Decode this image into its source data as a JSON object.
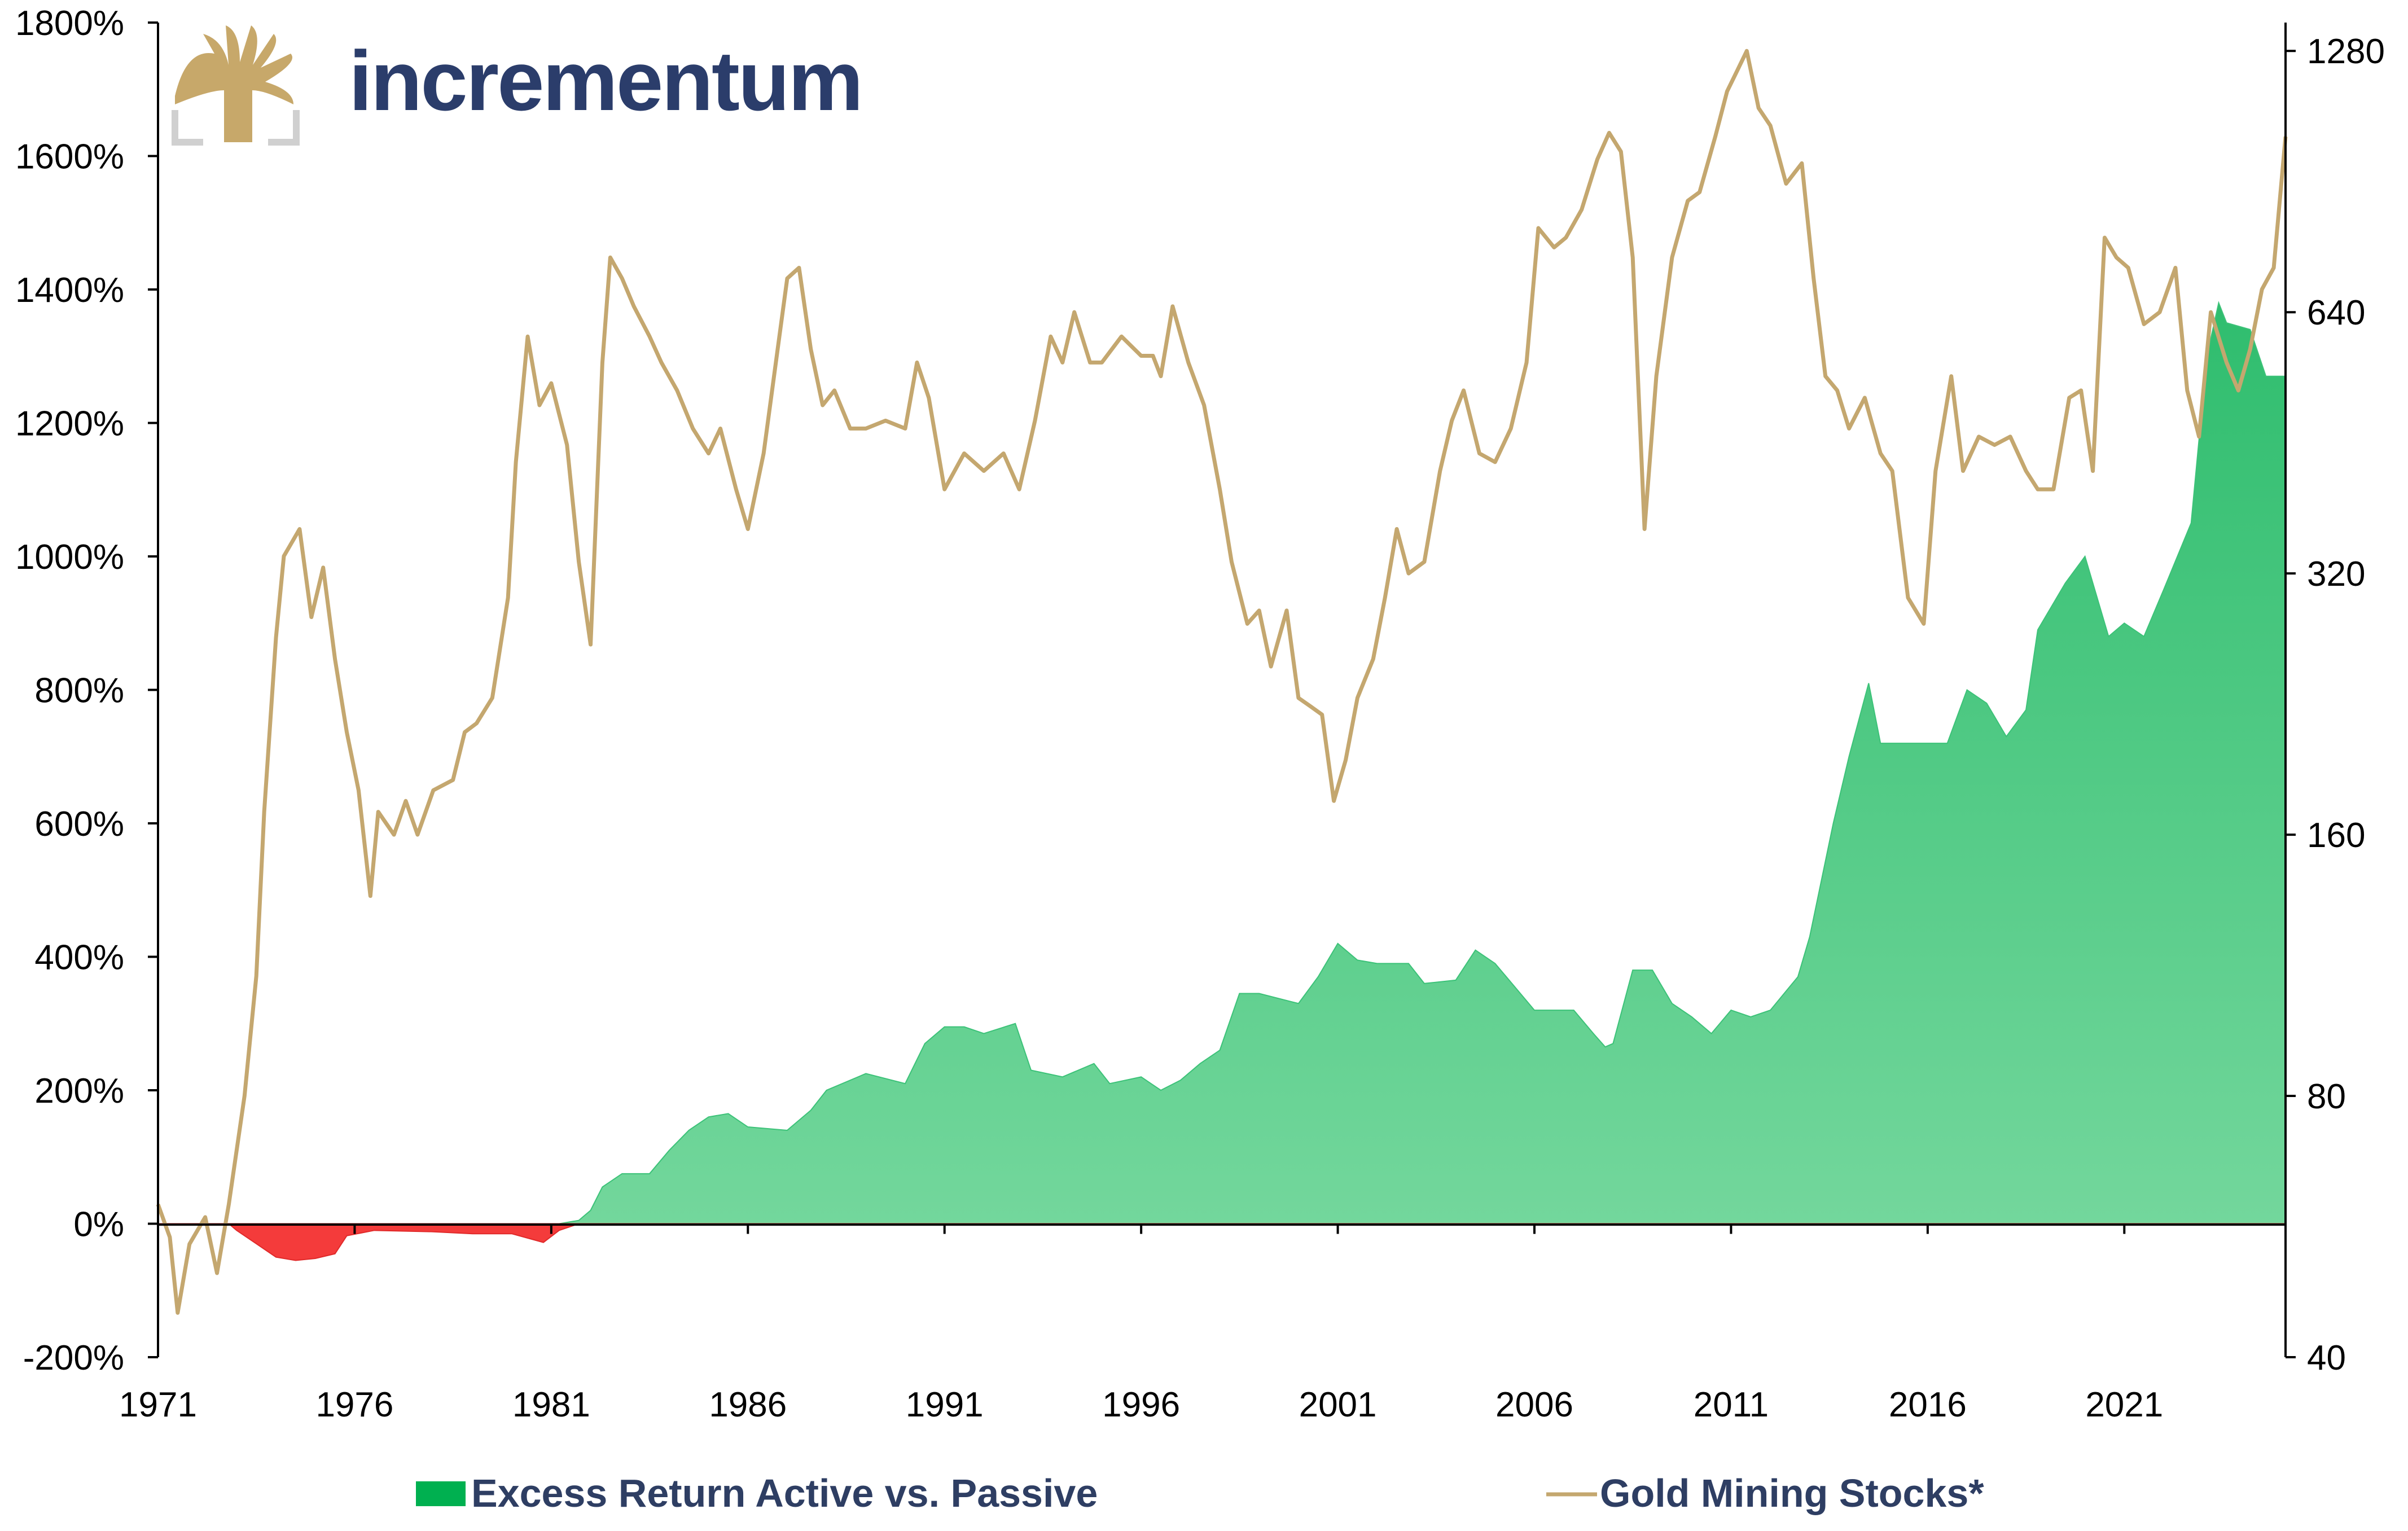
{
  "brand": {
    "name": "incrementum",
    "text_color": "#2b3d6b",
    "logo_color": "#c7a86a"
  },
  "chart_data": {
    "type": "bar",
    "title": "",
    "xlabel": "",
    "ylabel": "",
    "x_range": [
      1971,
      2025.1
    ],
    "x_ticks": [
      "1971",
      "1976",
      "1981",
      "1986",
      "1991",
      "1996",
      "2001",
      "2006",
      "2011",
      "2016",
      "2021"
    ],
    "y_left": {
      "range": [
        -200,
        1800
      ],
      "unit": "%",
      "ticks": [
        "-200%",
        "0%",
        "200%",
        "400%",
        "600%",
        "800%",
        "1000%",
        "1200%",
        "1400%",
        "1600%",
        "1800%"
      ]
    },
    "y_right": {
      "scale": "log2",
      "range": [
        40,
        1380
      ],
      "ticks": [
        "40",
        "80",
        "160",
        "320",
        "640",
        "1280"
      ]
    },
    "legend": {
      "position": "bottom"
    },
    "grid": false,
    "series": [
      {
        "name": "Excess Return Active vs. Passive",
        "type": "area",
        "axis": "left",
        "color_positive": "#3cc278",
        "color_negative": "#f43b3b",
        "legend_color": "#00b050",
        "points": [
          [
            1971.0,
            0
          ],
          [
            1972.8,
            0
          ],
          [
            1973.0,
            -10
          ],
          [
            1973.5,
            -30
          ],
          [
            1974.0,
            -50
          ],
          [
            1974.5,
            -55
          ],
          [
            1975.0,
            -52
          ],
          [
            1975.5,
            -45
          ],
          [
            1975.8,
            -18
          ],
          [
            1976.5,
            -10
          ],
          [
            1978.0,
            -12
          ],
          [
            1979.0,
            -15
          ],
          [
            1980.0,
            -15
          ],
          [
            1980.8,
            -28
          ],
          [
            1981.2,
            -10
          ],
          [
            1981.7,
            5
          ],
          [
            1982.0,
            20
          ],
          [
            1982.3,
            55
          ],
          [
            1982.8,
            75
          ],
          [
            1983.5,
            75
          ],
          [
            1984.0,
            110
          ],
          [
            1984.5,
            140
          ],
          [
            1985.0,
            160
          ],
          [
            1985.5,
            165
          ],
          [
            1986.0,
            145
          ],
          [
            1987.0,
            140
          ],
          [
            1987.6,
            170
          ],
          [
            1988.0,
            200
          ],
          [
            1989.0,
            225
          ],
          [
            1990.0,
            210
          ],
          [
            1990.5,
            270
          ],
          [
            1991.0,
            295
          ],
          [
            1991.5,
            295
          ],
          [
            1992.0,
            285
          ],
          [
            1992.8,
            300
          ],
          [
            1993.2,
            230
          ],
          [
            1994.0,
            220
          ],
          [
            1994.8,
            240
          ],
          [
            1995.2,
            210
          ],
          [
            1996.0,
            220
          ],
          [
            1996.5,
            200
          ],
          [
            1997.0,
            215
          ],
          [
            1997.5,
            240
          ],
          [
            1998.0,
            260
          ],
          [
            1998.5,
            345
          ],
          [
            1999.0,
            345
          ],
          [
            2000.0,
            330
          ],
          [
            2000.5,
            370
          ],
          [
            2001.0,
            420
          ],
          [
            2001.5,
            395
          ],
          [
            2002.0,
            390
          ],
          [
            2002.8,
            390
          ],
          [
            2003.2,
            360
          ],
          [
            2004.0,
            365
          ],
          [
            2004.5,
            410
          ],
          [
            2005.0,
            390
          ],
          [
            2006.0,
            320
          ],
          [
            2007.0,
            320
          ],
          [
            2007.5,
            285
          ],
          [
            2007.8,
            265
          ],
          [
            2008.0,
            270
          ],
          [
            2008.5,
            380
          ],
          [
            2009.0,
            380
          ],
          [
            2009.5,
            330
          ],
          [
            2010.0,
            310
          ],
          [
            2010.5,
            285
          ],
          [
            2011.0,
            320
          ],
          [
            2011.5,
            310
          ],
          [
            2012.0,
            320
          ],
          [
            2012.7,
            370
          ],
          [
            2013.0,
            430
          ],
          [
            2013.6,
            600
          ],
          [
            2014.0,
            700
          ],
          [
            2014.5,
            810
          ],
          [
            2014.8,
            720
          ],
          [
            2016.0,
            720
          ],
          [
            2016.5,
            720
          ],
          [
            2017.0,
            800
          ],
          [
            2017.5,
            780
          ],
          [
            2018.0,
            730
          ],
          [
            2018.5,
            770
          ],
          [
            2018.8,
            890
          ],
          [
            2019.5,
            960
          ],
          [
            2020.0,
            1000
          ],
          [
            2020.6,
            880
          ],
          [
            2021.0,
            900
          ],
          [
            2021.5,
            880
          ],
          [
            2022.0,
            950
          ],
          [
            2022.7,
            1050
          ],
          [
            2023.1,
            1300
          ],
          [
            2023.4,
            1380
          ],
          [
            2023.6,
            1350
          ],
          [
            2024.2,
            1340
          ],
          [
            2024.6,
            1270
          ],
          [
            2025.1,
            1270
          ]
        ]
      },
      {
        "name": "Gold Mining Stocks*",
        "type": "line",
        "axis": "right",
        "color": "#c4a76f",
        "points": [
          [
            1971.0,
            60
          ],
          [
            1971.3,
            55
          ],
          [
            1971.5,
            45
          ],
          [
            1971.8,
            54
          ],
          [
            1972.2,
            58
          ],
          [
            1972.5,
            50
          ],
          [
            1972.8,
            60
          ],
          [
            1973.2,
            80
          ],
          [
            1973.5,
            110
          ],
          [
            1973.7,
            170
          ],
          [
            1974.0,
            270
          ],
          [
            1974.2,
            335
          ],
          [
            1974.6,
            360
          ],
          [
            1974.9,
            285
          ],
          [
            1975.2,
            325
          ],
          [
            1975.5,
            255
          ],
          [
            1975.8,
            210
          ],
          [
            1976.1,
            180
          ],
          [
            1976.4,
            136
          ],
          [
            1976.6,
            170
          ],
          [
            1977.0,
            160
          ],
          [
            1977.3,
            175
          ],
          [
            1977.6,
            160
          ],
          [
            1978.0,
            180
          ],
          [
            1978.5,
            185
          ],
          [
            1978.8,
            210
          ],
          [
            1979.1,
            215
          ],
          [
            1979.5,
            230
          ],
          [
            1979.9,
            300
          ],
          [
            1980.1,
            430
          ],
          [
            1980.4,
            600
          ],
          [
            1980.7,
            500
          ],
          [
            1981.0,
            530
          ],
          [
            1981.4,
            450
          ],
          [
            1981.7,
            330
          ],
          [
            1982.0,
            265
          ],
          [
            1982.3,
            560
          ],
          [
            1982.5,
            740
          ],
          [
            1982.8,
            700
          ],
          [
            1983.1,
            650
          ],
          [
            1983.5,
            600
          ],
          [
            1983.8,
            560
          ],
          [
            1984.2,
            520
          ],
          [
            1984.6,
            470
          ],
          [
            1985.0,
            440
          ],
          [
            1985.3,
            470
          ],
          [
            1985.7,
            400
          ],
          [
            1986.0,
            360
          ],
          [
            1986.4,
            440
          ],
          [
            1986.8,
            600
          ],
          [
            1987.0,
            700
          ],
          [
            1987.3,
            720
          ],
          [
            1987.6,
            580
          ],
          [
            1987.9,
            500
          ],
          [
            1988.2,
            520
          ],
          [
            1988.6,
            470
          ],
          [
            1989.0,
            470
          ],
          [
            1989.5,
            480
          ],
          [
            1990.0,
            470
          ],
          [
            1990.3,
            560
          ],
          [
            1990.6,
            510
          ],
          [
            1991.0,
            400
          ],
          [
            1991.5,
            440
          ],
          [
            1992.0,
            420
          ],
          [
            1992.5,
            440
          ],
          [
            1992.9,
            400
          ],
          [
            1993.3,
            480
          ],
          [
            1993.7,
            600
          ],
          [
            1994.0,
            560
          ],
          [
            1994.3,
            640
          ],
          [
            1994.7,
            560
          ],
          [
            1995.0,
            560
          ],
          [
            1995.5,
            600
          ],
          [
            1996.0,
            570
          ],
          [
            1996.3,
            570
          ],
          [
            1996.5,
            540
          ],
          [
            1996.8,
            650
          ],
          [
            1997.2,
            560
          ],
          [
            1997.6,
            500
          ],
          [
            1998.0,
            400
          ],
          [
            1998.3,
            330
          ],
          [
            1998.7,
            280
          ],
          [
            1999.0,
            290
          ],
          [
            1999.3,
            250
          ],
          [
            1999.7,
            290
          ],
          [
            2000.0,
            230
          ],
          [
            2000.3,
            225
          ],
          [
            2000.6,
            220
          ],
          [
            2000.9,
            175
          ],
          [
            2001.2,
            195
          ],
          [
            2001.5,
            230
          ],
          [
            2001.9,
            255
          ],
          [
            2002.2,
            300
          ],
          [
            2002.5,
            360
          ],
          [
            2002.8,
            320
          ],
          [
            2003.2,
            330
          ],
          [
            2003.6,
            420
          ],
          [
            2003.9,
            480
          ],
          [
            2004.2,
            520
          ],
          [
            2004.6,
            440
          ],
          [
            2005.0,
            430
          ],
          [
            2005.4,
            470
          ],
          [
            2005.8,
            560
          ],
          [
            2006.1,
            800
          ],
          [
            2006.5,
            760
          ],
          [
            2006.8,
            780
          ],
          [
            2007.2,
            840
          ],
          [
            2007.6,
            960
          ],
          [
            2007.9,
            1030
          ],
          [
            2008.2,
            980
          ],
          [
            2008.5,
            740
          ],
          [
            2008.8,
            360
          ],
          [
            2009.1,
            540
          ],
          [
            2009.5,
            740
          ],
          [
            2009.9,
            860
          ],
          [
            2010.2,
            880
          ],
          [
            2010.6,
            1020
          ],
          [
            2010.9,
            1150
          ],
          [
            2011.1,
            1200
          ],
          [
            2011.4,
            1280
          ],
          [
            2011.7,
            1100
          ],
          [
            2012.0,
            1050
          ],
          [
            2012.4,
            900
          ],
          [
            2012.8,
            950
          ],
          [
            2013.1,
            700
          ],
          [
            2013.4,
            540
          ],
          [
            2013.7,
            520
          ],
          [
            2014.0,
            470
          ],
          [
            2014.4,
            510
          ],
          [
            2014.8,
            440
          ],
          [
            2015.1,
            420
          ],
          [
            2015.5,
            300
          ],
          [
            2015.9,
            280
          ],
          [
            2016.2,
            420
          ],
          [
            2016.6,
            540
          ],
          [
            2016.9,
            420
          ],
          [
            2017.3,
            460
          ],
          [
            2017.7,
            450
          ],
          [
            2018.1,
            460
          ],
          [
            2018.5,
            420
          ],
          [
            2018.8,
            400
          ],
          [
            2019.2,
            400
          ],
          [
            2019.6,
            510
          ],
          [
            2019.9,
            520
          ],
          [
            2020.2,
            420
          ],
          [
            2020.5,
            780
          ],
          [
            2020.8,
            740
          ],
          [
            2021.1,
            720
          ],
          [
            2021.5,
            620
          ],
          [
            2021.9,
            640
          ],
          [
            2022.3,
            720
          ],
          [
            2022.6,
            520
          ],
          [
            2022.9,
            460
          ],
          [
            2023.2,
            640
          ],
          [
            2023.6,
            560
          ],
          [
            2023.9,
            520
          ],
          [
            2024.2,
            580
          ],
          [
            2024.5,
            680
          ],
          [
            2024.8,
            720
          ],
          [
            2025.1,
            1020
          ]
        ]
      }
    ]
  }
}
